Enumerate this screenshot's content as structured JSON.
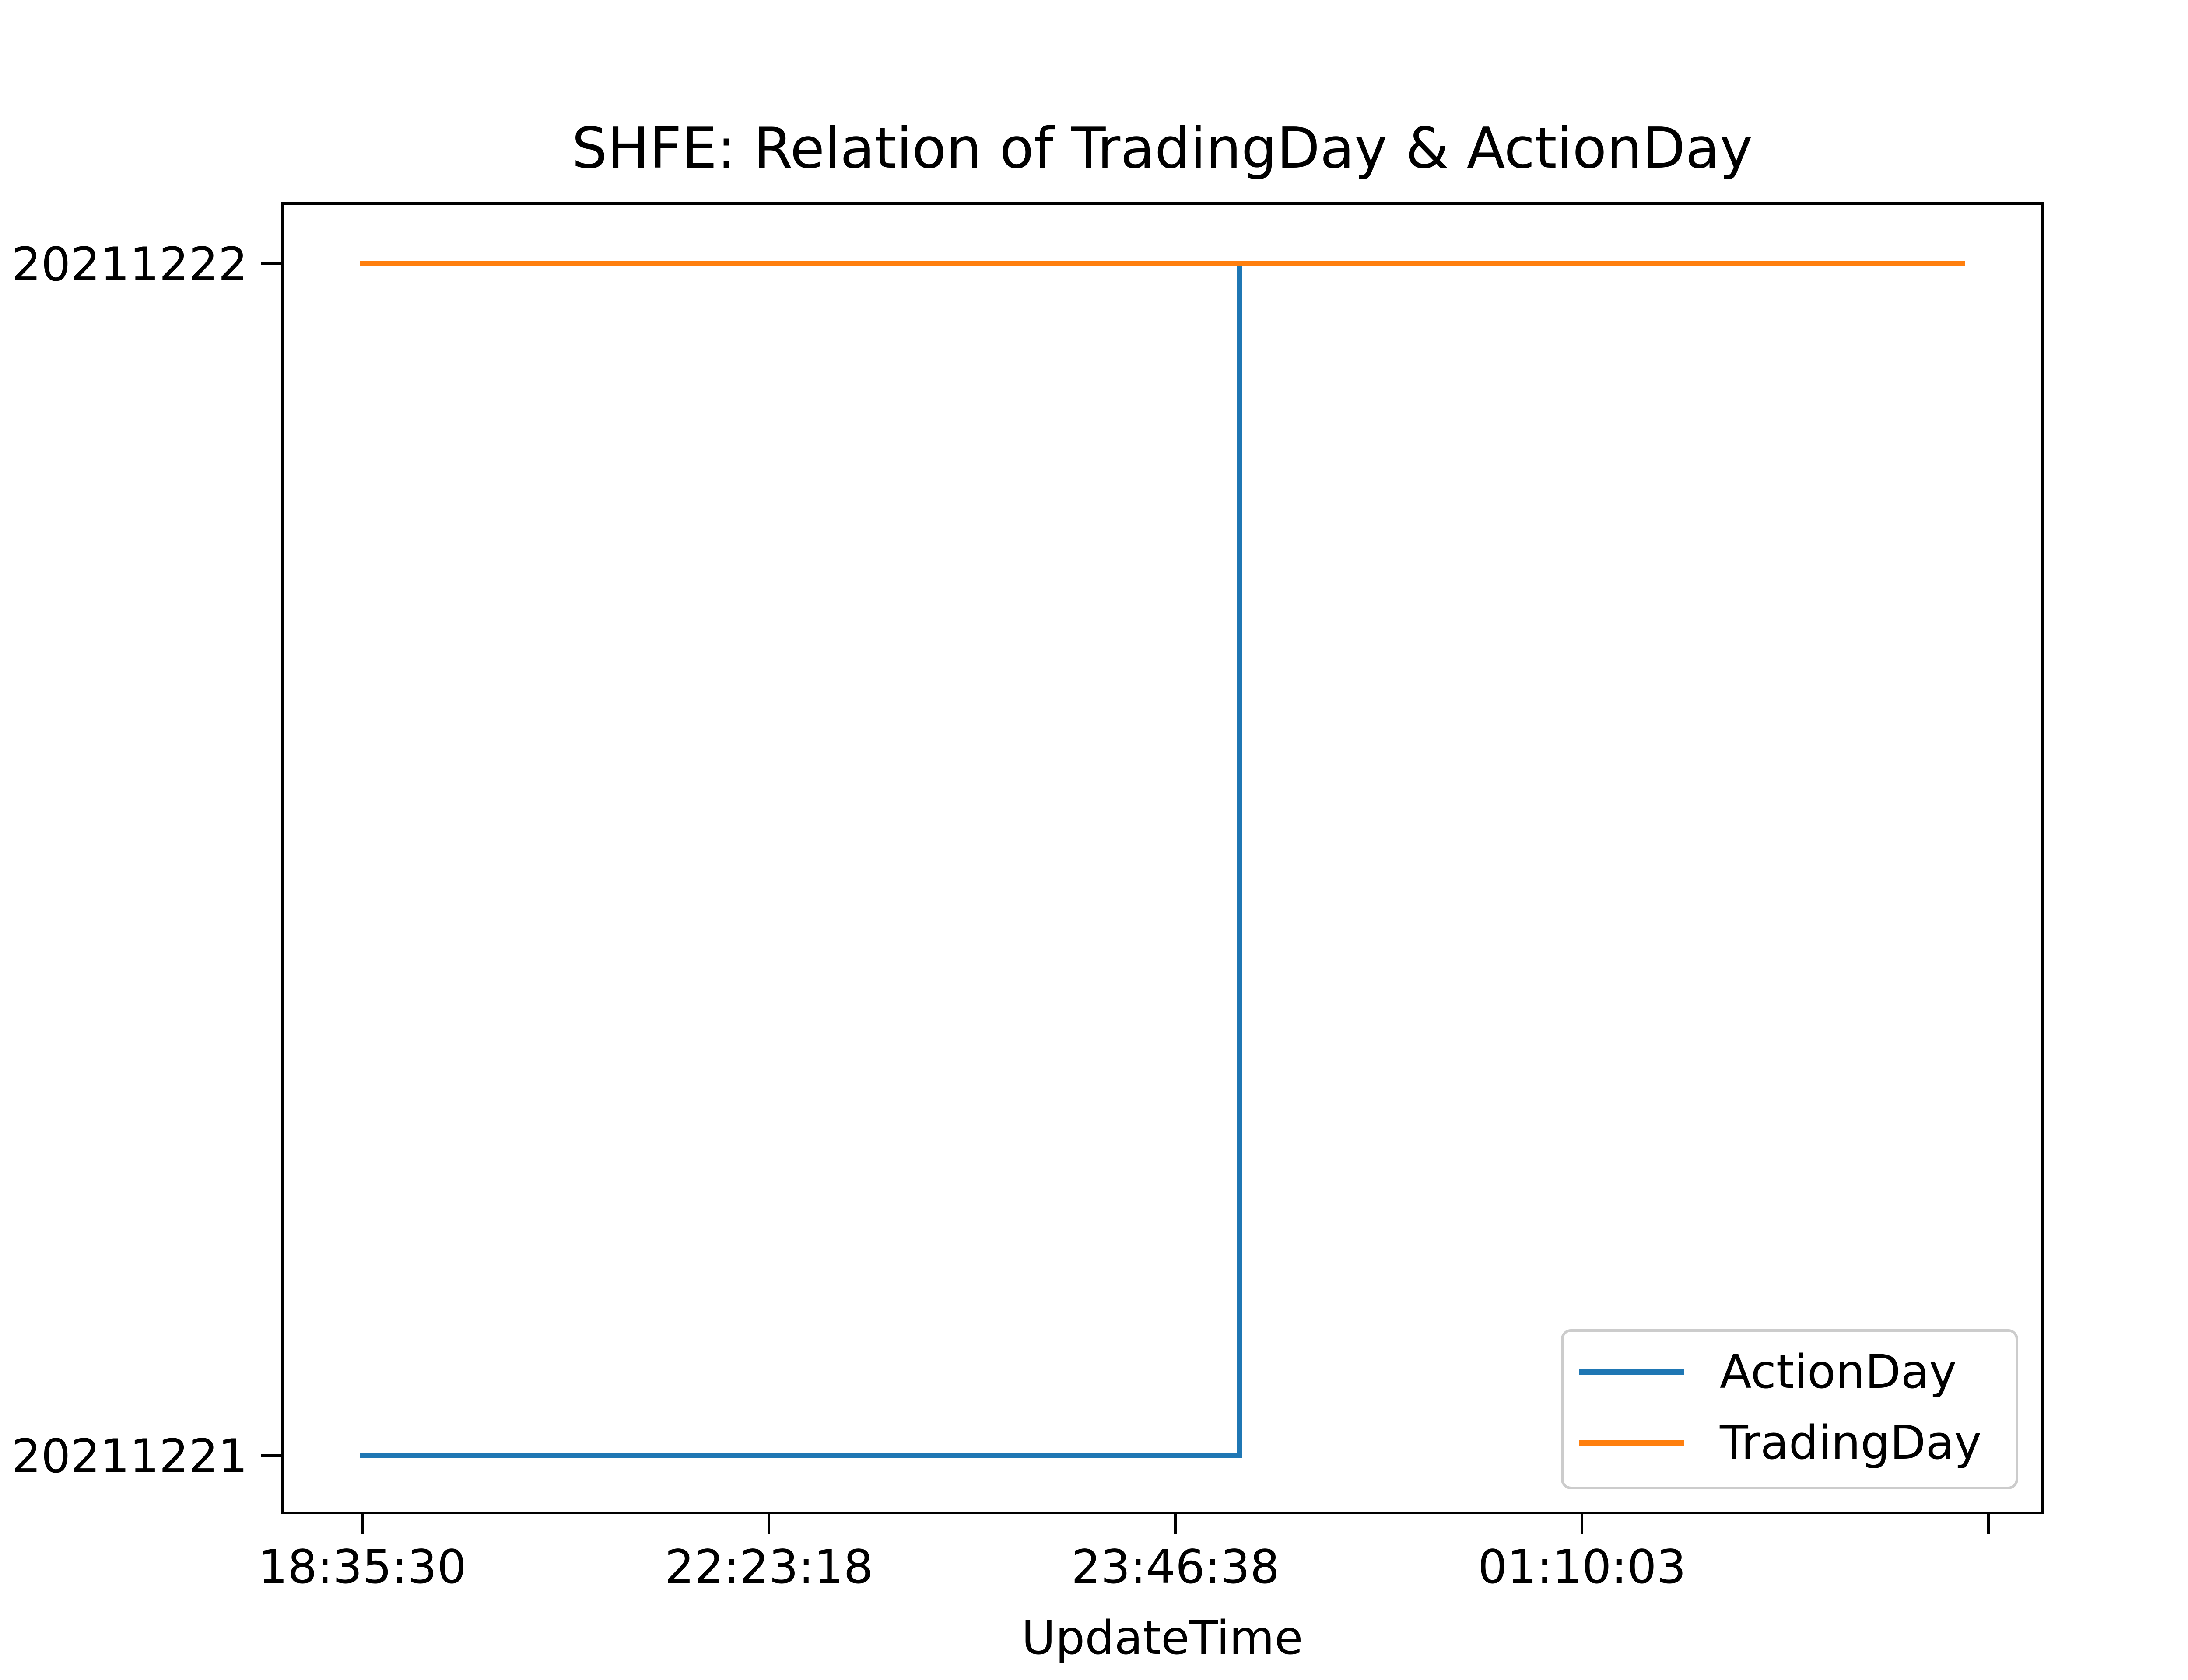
{
  "chart_data": {
    "type": "line",
    "title": "SHFE: Relation of TradingDay & ActionDay",
    "xlabel": "UpdateTime",
    "ylabel": "",
    "x_tick_labels": [
      "18:35:30",
      "22:23:18",
      "23:46:38",
      "01:10:03",
      ""
    ],
    "y_categories": [
      "20211221",
      "20211222"
    ],
    "x_range": [
      0,
      1
    ],
    "grid": false,
    "legend_position": "lower-right",
    "series": [
      {
        "name": "ActionDay",
        "color": "#1f77b4",
        "step": true,
        "points": [
          {
            "x": 0.0,
            "y": "20211221"
          },
          {
            "x": 0.548,
            "y": "20211221"
          },
          {
            "x": 0.548,
            "y": "20211222"
          },
          {
            "x": 1.0,
            "y": "20211222"
          }
        ]
      },
      {
        "name": "TradingDay",
        "color": "#ff7f0e",
        "step": false,
        "points": [
          {
            "x": 0.0,
            "y": "20211222"
          },
          {
            "x": 1.0,
            "y": "20211222"
          }
        ]
      }
    ]
  }
}
